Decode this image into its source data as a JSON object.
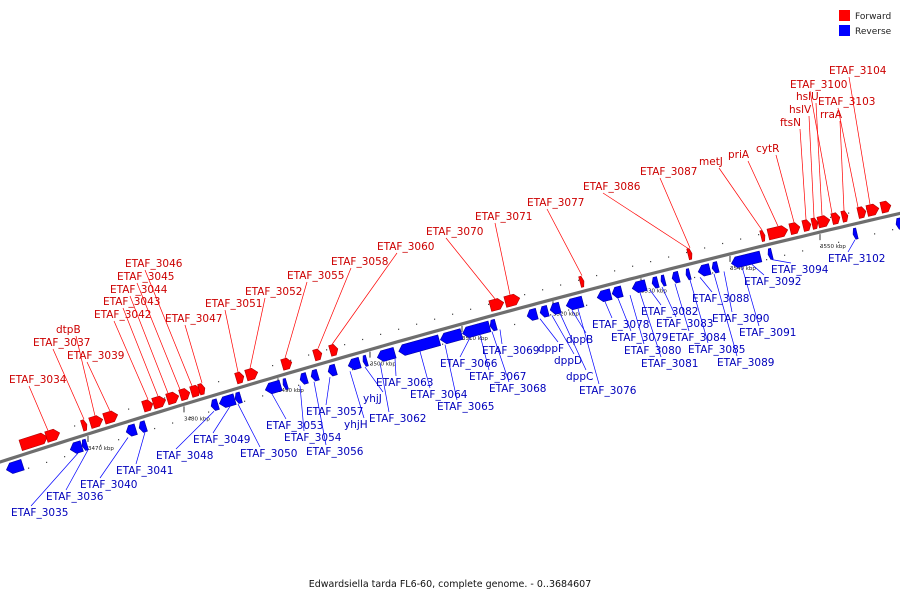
{
  "caption": "Edwardsiella tarda FL6-60, complete genome. - 0..3684607",
  "legend": {
    "forward_label": "Forward",
    "reverse_label": "Reverse",
    "forward_color": "#ff0000",
    "reverse_color": "#0000ff"
  },
  "ticks": [
    "3470 kbp",
    "3480 kbp",
    "3490 kbp",
    "3500 kbp",
    "3510 kbp",
    "3520 kbp",
    "3530 kbp",
    "3540 kbp",
    "3550 kbp"
  ],
  "forward_genes": [
    "ETAF_3034",
    "ETAF_3037",
    "dtpB",
    "ETAF_3039",
    "ETAF_3042",
    "ETAF_3043",
    "ETAF_3044",
    "ETAF_3045",
    "ETAF_3046",
    "ETAF_3047",
    "ETAF_3051",
    "ETAF_3052",
    "ETAF_3055",
    "ETAF_3058",
    "ETAF_3060",
    "ETAF_3070",
    "ETAF_3071",
    "ETAF_3077",
    "ETAF_3086",
    "ETAF_3087",
    "metJ",
    "priA",
    "cytR",
    "ftsN",
    "hslV",
    "hslU",
    "ETAF_3100",
    "rraA",
    "ETAF_3103",
    "ETAF_3104"
  ],
  "reverse_genes": [
    "ETAF_3035",
    "ETAF_3036",
    "ETAF_3040",
    "ETAF_3041",
    "ETAF_3048",
    "ETAF_3049",
    "ETAF_3050",
    "ETAF_3053",
    "ETAF_3054",
    "ETAF_3056",
    "ETAF_3057",
    "yhjH",
    "yhjJ",
    "ETAF_3062",
    "ETAF_3063",
    "ETAF_3064",
    "ETAF_3065",
    "ETAF_3066",
    "ETAF_3067",
    "ETAF_3068",
    "ETAF_3069",
    "dppF",
    "dppD",
    "dppC",
    "dppB",
    "ETAF_3076",
    "ETAF_3078",
    "ETAF_3079",
    "ETAF_3080",
    "ETAF_3081",
    "ETAF_3082",
    "ETAF_3083",
    "ETAF_3084",
    "ETAF_3085",
    "ETAF_3088",
    "ETAF_3089",
    "ETAF_3090",
    "ETAF_3091",
    "ETAF_3092",
    "ETAF_3094",
    "ETAF_3102"
  ]
}
